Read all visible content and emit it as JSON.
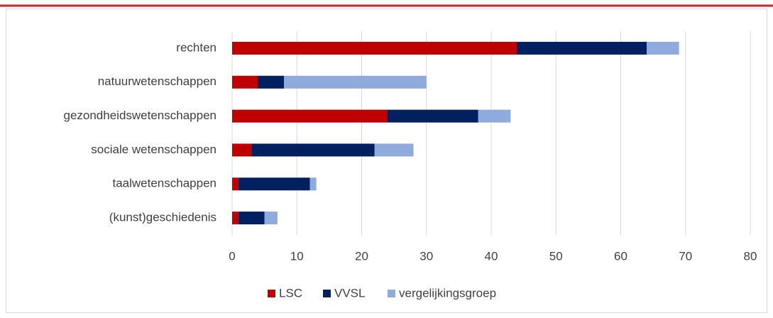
{
  "chart_data": {
    "type": "stacked_barh",
    "categories": [
      "rechten",
      "natuurwetenschappen",
      "gezondheidswetenschappen",
      "sociale wetenschappen",
      "taalwetenschappen",
      "(kunst)geschiedenis"
    ],
    "series": [
      {
        "name": "LSC",
        "color": "#c00000",
        "values": [
          44,
          4,
          24,
          3,
          1,
          1
        ]
      },
      {
        "name": "VVSL",
        "color": "#002060",
        "values": [
          20,
          4,
          14,
          19,
          11,
          4
        ]
      },
      {
        "name": "vergelijkingsgroep",
        "color": "#8faadc",
        "values": [
          5,
          22,
          5,
          6,
          1,
          2
        ]
      }
    ],
    "xlim": [
      0,
      80
    ],
    "xticks": [
      0,
      10,
      20,
      30,
      40,
      50,
      60,
      70,
      80
    ],
    "grid": true,
    "legend": "bottom"
  }
}
